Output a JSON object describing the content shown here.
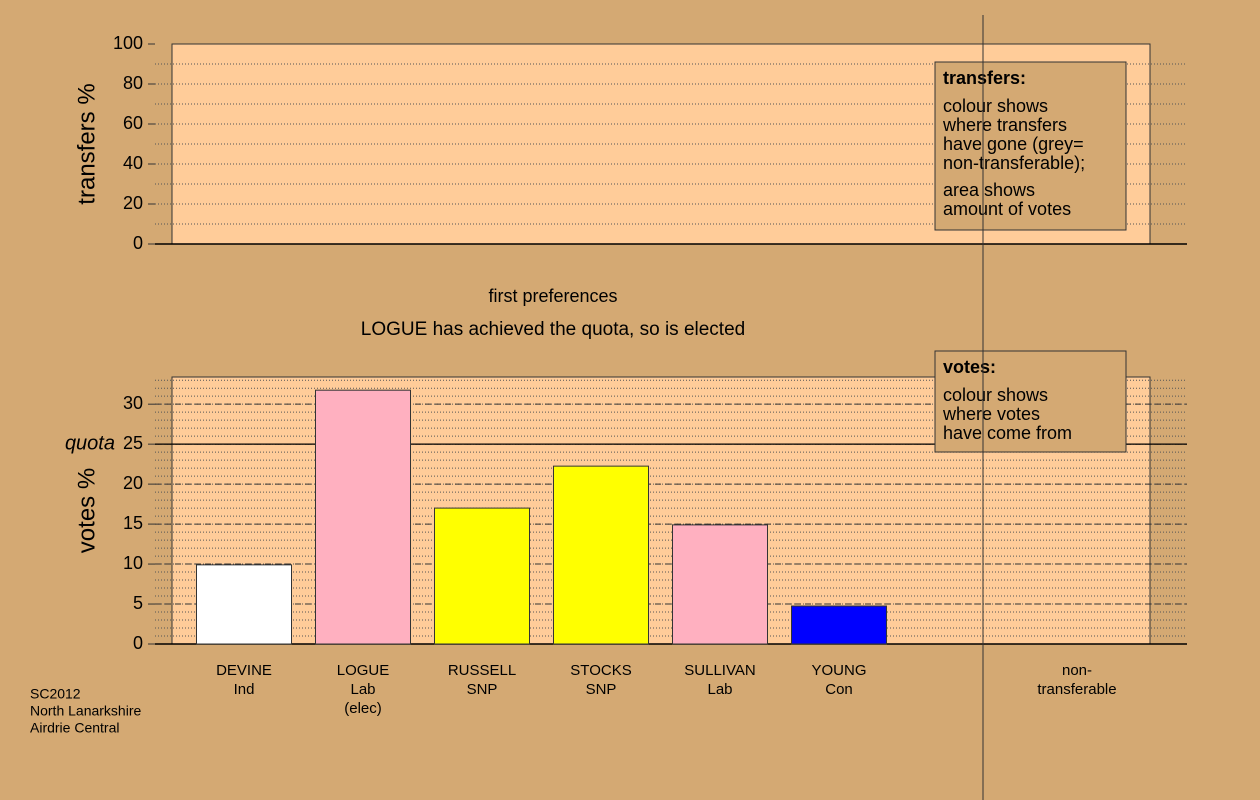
{
  "chart_data": [
    {
      "type": "bar",
      "ylabel": "transfers %",
      "ylim": [
        0,
        100
      ],
      "yticks": [
        0,
        20,
        40,
        60,
        80,
        100
      ],
      "minor_grid_step": 10,
      "plot_color": "#ffcc99",
      "legend": {
        "title": "transfers:",
        "paragraphs": [
          [
            "colour shows",
            "where transfers",
            "have gone (grey=",
            "non-transferable);"
          ],
          [
            "area shows",
            "amount of votes"
          ]
        ]
      }
    },
    {
      "type": "bar",
      "title": "first preferences",
      "subtitle": "LOGUE has achieved the quota, so is elected",
      "ylabel": "votes %",
      "ylim": [
        0,
        33.4
      ],
      "yticks": [
        0,
        5,
        10,
        15,
        20,
        25,
        30
      ],
      "minor_grid_step": 1,
      "plot_color": "#ffcc99",
      "quota": {
        "value": 25,
        "label": "quota"
      },
      "categories": [
        [
          "DEVINE",
          "Ind"
        ],
        [
          "LOGUE",
          "Lab",
          "(elec)"
        ],
        [
          "RUSSELL",
          "SNP"
        ],
        [
          "STOCKS",
          "SNP"
        ],
        [
          "SULLIVAN",
          "Lab"
        ],
        [
          "YOUNG",
          "Con"
        ],
        null,
        [
          "non-",
          "transferable"
        ]
      ],
      "values": [
        9.9,
        31.75,
        17.0,
        22.25,
        14.9,
        4.75,
        null,
        null
      ],
      "colors": [
        "#ffffff",
        "#ffb0c0",
        "#ffff00",
        "#ffff00",
        "#ffb0c0",
        "#0000ff",
        null,
        null
      ],
      "legend": {
        "title": "votes:",
        "paragraphs": [
          [
            "colour shows",
            "where votes",
            "have come from"
          ]
        ]
      }
    }
  ],
  "note": [
    "SC2012",
    "North Lanarkshire",
    "Airdrie Central"
  ]
}
